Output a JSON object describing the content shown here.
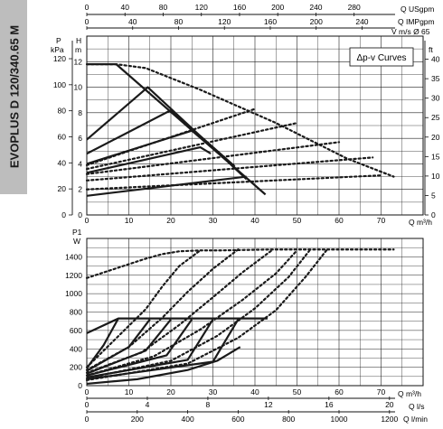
{
  "model_label": "EVOPLUS D 120/340.65 M",
  "chart_data": [
    {
      "type": "line",
      "title": "",
      "legend_label": "Δp-v Curves",
      "top_axes": [
        {
          "label": "Q USgpm",
          "ticks": [
            "0",
            "40",
            "80",
            "120",
            "160",
            "200",
            "240",
            "280"
          ]
        },
        {
          "label": "Q IMPgpm",
          "ticks": [
            "0",
            "40",
            "80",
            "120",
            "160",
            "200",
            "240"
          ]
        },
        {
          "label": "V m/s Ø 65",
          "ticks": []
        }
      ],
      "bottom_label": "Q m³/h",
      "x_ticks": [
        "0",
        "10",
        "20",
        "30",
        "40",
        "50",
        "60",
        "70"
      ],
      "xlim": [
        0,
        80
      ],
      "left_axis_label": "P kPa",
      "left_ticks": [
        "0",
        "20",
        "40",
        "60",
        "80",
        "100",
        "120"
      ],
      "h_axis_label": "H m",
      "h_ticks": [
        "0",
        "2",
        "4",
        "6",
        "8",
        "10",
        "12"
      ],
      "ylim": [
        0,
        14
      ],
      "right_axis_label": "ft",
      "right_ticks": [
        "0",
        "5",
        "10",
        "15",
        "20",
        "25",
        "30",
        "35",
        "40"
      ],
      "series": [
        {
          "style": "solid",
          "x": [
            0,
            7,
            42.5
          ],
          "y": [
            11.8,
            11.8,
            1.6
          ]
        },
        {
          "style": "solid",
          "x": [
            0,
            14.5,
            38
          ],
          "y": [
            5.9,
            10.0,
            2.8
          ]
        },
        {
          "style": "solid",
          "x": [
            0,
            20,
            35.2
          ],
          "y": [
            4.8,
            8.2,
            3.8
          ]
        },
        {
          "style": "solid",
          "x": [
            0,
            25,
            32.5
          ],
          "y": [
            4.0,
            6.6,
            4.5
          ]
        },
        {
          "style": "solid",
          "x": [
            0,
            27,
            29.5
          ],
          "y": [
            3.3,
            5.3,
            4.8
          ]
        },
        {
          "style": "solid",
          "x": [
            0,
            38
          ],
          "y": [
            1.5,
            3.0
          ]
        },
        {
          "style": "dotted",
          "x": [
            0,
            7,
            14,
            27,
            45,
            62,
            73
          ],
          "y": [
            11.8,
            11.8,
            11.5,
            9.8,
            7.2,
            4.4,
            3.0
          ]
        },
        {
          "style": "dotted",
          "x": [
            0,
            40
          ],
          "y": [
            3.9,
            8.3
          ]
        },
        {
          "style": "dotted",
          "x": [
            0,
            50
          ],
          "y": [
            3.6,
            7.2
          ]
        },
        {
          "style": "dotted",
          "x": [
            0,
            60
          ],
          "y": [
            3.2,
            5.7
          ]
        },
        {
          "style": "dotted",
          "x": [
            0,
            68
          ],
          "y": [
            2.7,
            4.5
          ]
        },
        {
          "style": "dotted",
          "x": [
            0,
            70
          ],
          "y": [
            2.0,
            3.1
          ]
        }
      ]
    },
    {
      "type": "line",
      "title": "",
      "left_axis_label": "P1 W",
      "y_ticks": [
        "0",
        "200",
        "400",
        "600",
        "800",
        "1000",
        "1200",
        "1400"
      ],
      "ylim": [
        0,
        1600
      ],
      "x_ticks": [
        "0",
        "10",
        "20",
        "30",
        "40",
        "50",
        "60",
        "70"
      ],
      "xlim": [
        0,
        80
      ],
      "bottom_axes": [
        {
          "label": "Q m³/h",
          "ticks": [
            "0",
            "10",
            "20",
            "30",
            "40",
            "50",
            "60",
            "70"
          ]
        },
        {
          "label": "Q l/s",
          "ticks": [
            "0",
            "4",
            "8",
            "12",
            "16",
            "20"
          ]
        },
        {
          "label": "Q l/min",
          "ticks": [
            "0",
            "200",
            "400",
            "600",
            "800",
            "1000",
            "1200"
          ]
        }
      ],
      "series": [
        {
          "style": "solid",
          "x": [
            0,
            7.5,
            43
          ],
          "y": [
            570,
            730,
            730
          ]
        },
        {
          "style": "solid",
          "x": [
            0,
            4,
            7.5
          ],
          "y": [
            190,
            440,
            730
          ]
        },
        {
          "style": "solid",
          "x": [
            0,
            10,
            15
          ],
          "y": [
            160,
            420,
            720
          ]
        },
        {
          "style": "solid",
          "x": [
            0,
            14,
            20
          ],
          "y": [
            130,
            380,
            720
          ]
        },
        {
          "style": "solid",
          "x": [
            0,
            19,
            25
          ],
          "y": [
            110,
            330,
            720
          ]
        },
        {
          "style": "solid",
          "x": [
            0,
            24,
            30
          ],
          "y": [
            90,
            280,
            720
          ]
        },
        {
          "style": "solid",
          "x": [
            0,
            30,
            36
          ],
          "y": [
            70,
            260,
            720
          ]
        },
        {
          "style": "solid",
          "x": [
            0,
            12,
            24,
            31,
            36.5
          ],
          "y": [
            20,
            70,
            170,
            270,
            420
          ]
        },
        {
          "style": "dotted",
          "x": [
            0,
            8,
            14,
            18,
            22,
            27,
            32,
            38,
            44,
            49,
            53,
            57,
            73
          ],
          "y": [
            1170,
            1290,
            1380,
            1430,
            1460,
            1470,
            1470,
            1475,
            1480,
            1480,
            1480,
            1480,
            1480
          ]
        },
        {
          "style": "dotted",
          "x": [
            0,
            8,
            14,
            18,
            22,
            27
          ],
          "y": [
            200,
            560,
            830,
            1080,
            1300,
            1470
          ]
        },
        {
          "style": "dotted",
          "x": [
            0,
            10,
            18,
            24,
            30,
            36
          ],
          "y": [
            170,
            420,
            740,
            1020,
            1270,
            1480
          ]
        },
        {
          "style": "dotted",
          "x": [
            0,
            13,
            22,
            30,
            37,
            44
          ],
          "y": [
            140,
            360,
            660,
            960,
            1230,
            1470
          ]
        },
        {
          "style": "dotted",
          "x": [
            0,
            16,
            27,
            37,
            45,
            50
          ],
          "y": [
            110,
            320,
            610,
            930,
            1220,
            1470
          ]
        },
        {
          "style": "dotted",
          "x": [
            0,
            20,
            31,
            40,
            48,
            53
          ],
          "y": [
            80,
            270,
            540,
            840,
            1180,
            1470
          ]
        },
        {
          "style": "dotted",
          "x": [
            0,
            24,
            36,
            45,
            52,
            57
          ],
          "y": [
            60,
            240,
            520,
            820,
            1180,
            1470
          ]
        }
      ]
    }
  ]
}
